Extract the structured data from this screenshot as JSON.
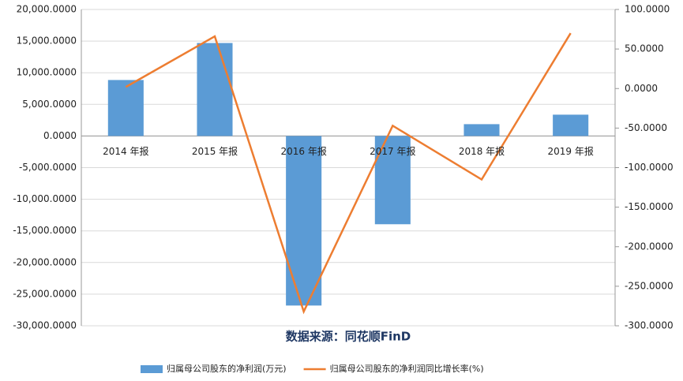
{
  "chart_data": {
    "type": "bar-line",
    "categories": [
      "2014 年报",
      "2015 年报",
      "2016 年报",
      "2017 年报",
      "2018 年报",
      "2019 年报"
    ],
    "series": [
      {
        "name": "归属母公司股东的净利润(万元)",
        "type": "bar",
        "color": "#5b9bd5",
        "values": [
          8850,
          14700,
          -26800,
          -13950,
          1870,
          3370
        ]
      },
      {
        "name": "归属母公司股东的净利润同比增长率(%)",
        "type": "line",
        "axis": "y2",
        "color": "#ed7d31",
        "values": [
          2,
          66,
          -282,
          -47,
          -115,
          70
        ]
      }
    ],
    "ylim": [
      -30000,
      20000
    ],
    "yticks": [
      {
        "value": -30000,
        "label": "-30,000.0000"
      },
      {
        "value": -25000,
        "label": "-25,000.0000"
      },
      {
        "value": -20000,
        "label": "-20,000.0000"
      },
      {
        "value": -15000,
        "label": "-15,000.0000"
      },
      {
        "value": -10000,
        "label": "-10,000.0000"
      },
      {
        "value": -5000,
        "label": "-5,000.0000"
      },
      {
        "value": 0,
        "label": "0.0000"
      },
      {
        "value": 5000,
        "label": "5,000.0000"
      },
      {
        "value": 10000,
        "label": "10,000.0000"
      },
      {
        "value": 15000,
        "label": "15,000.0000"
      },
      {
        "value": 20000,
        "label": "20,000.0000"
      }
    ],
    "y2lim": [
      -300,
      100
    ],
    "y2ticks": [
      {
        "value": -300,
        "label": "-300.0000"
      },
      {
        "value": -250,
        "label": "-250.0000"
      },
      {
        "value": -200,
        "label": "-200.0000"
      },
      {
        "value": -150,
        "label": "-150.0000"
      },
      {
        "value": -100,
        "label": "-100.0000"
      },
      {
        "value": -50,
        "label": "-50.0000"
      },
      {
        "value": 0,
        "label": "0.0000"
      },
      {
        "value": 50,
        "label": "50.0000"
      },
      {
        "value": 100,
        "label": "100.0000"
      }
    ],
    "grid": true,
    "legend": "bottom",
    "annotation": "数据来源：同花顺FinD"
  }
}
